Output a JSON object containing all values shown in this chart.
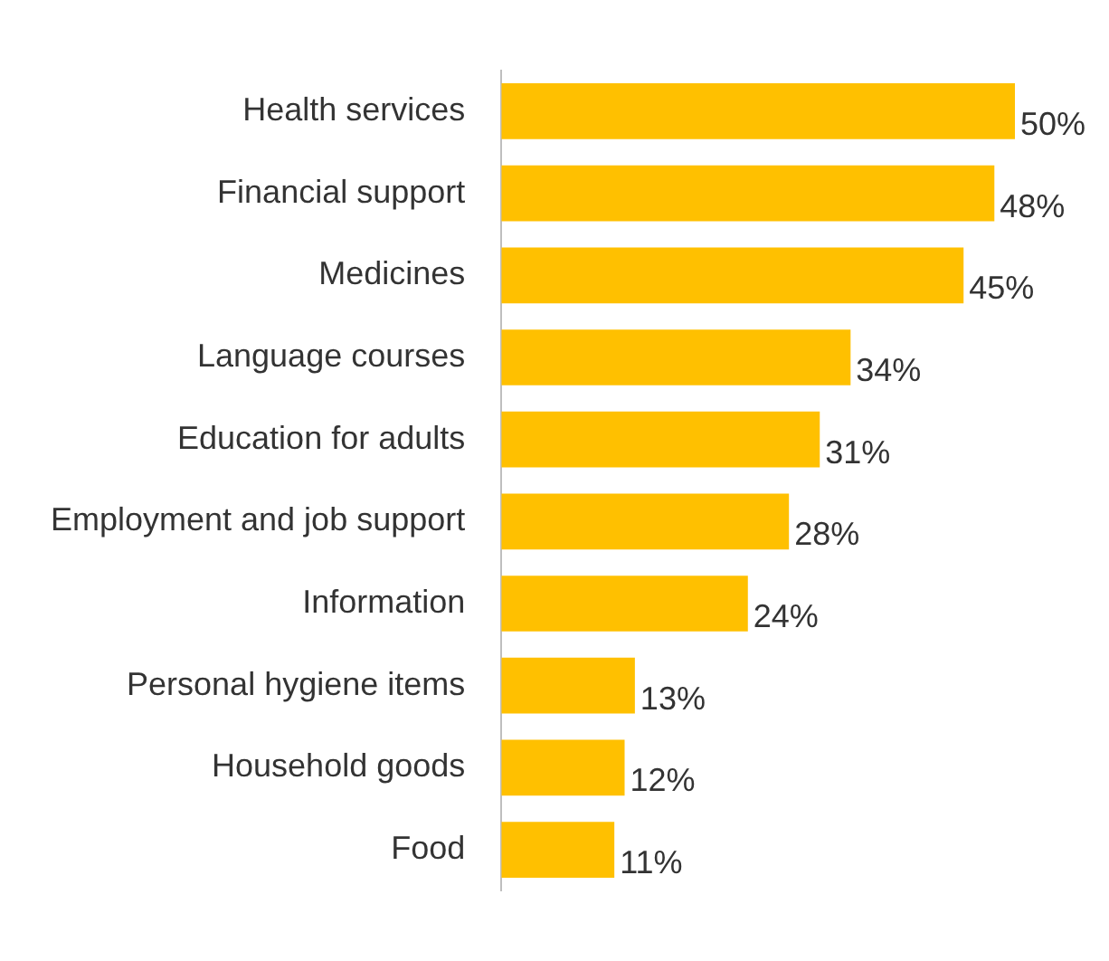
{
  "chart_data": {
    "type": "bar",
    "orientation": "horizontal",
    "categories": [
      "Health services",
      "Financial support",
      "Medicines",
      "Language courses",
      "Education for adults",
      "Employment and job support",
      "Information",
      "Personal hygiene items",
      "Household goods",
      "Food"
    ],
    "values": [
      50,
      48,
      45,
      34,
      31,
      28,
      24,
      13,
      12,
      11
    ],
    "color": "#ffc000",
    "value_labels": [
      "50%",
      "48%",
      "45%",
      "34%",
      "31%",
      "28%",
      "24%",
      "13%",
      "12%",
      "11%"
    ],
    "grid": false,
    "legend": false
  }
}
